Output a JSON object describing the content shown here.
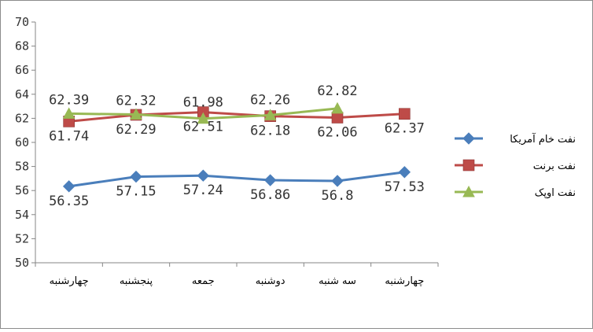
{
  "chart_data": {
    "type": "line",
    "title": "",
    "xlabel": "",
    "ylabel": "",
    "ylim": [
      50,
      70
    ],
    "yticks": [
      50,
      52,
      54,
      56,
      58,
      60,
      62,
      64,
      66,
      68,
      70
    ],
    "grid": false,
    "legend_position": "right",
    "categories": [
      "چهارشنبه",
      "پنجشنبه",
      "جمعه",
      "دوشنبه",
      "سه شنبه",
      "چهارشنبه"
    ],
    "series": [
      {
        "name": "نفت خام آمریکا",
        "marker": "diamond",
        "color": "#4a7ebb",
        "values": [
          56.35,
          57.15,
          57.24,
          56.86,
          56.8,
          57.53
        ]
      },
      {
        "name": "نفت برنت",
        "marker": "square",
        "color": "#be4b48",
        "values": [
          61.74,
          62.29,
          62.51,
          62.18,
          62.06,
          62.37
        ]
      },
      {
        "name": "نفت اوپک",
        "marker": "triangle",
        "color": "#98b954",
        "values": [
          62.39,
          62.32,
          61.98,
          62.26,
          62.82,
          null
        ]
      }
    ]
  }
}
